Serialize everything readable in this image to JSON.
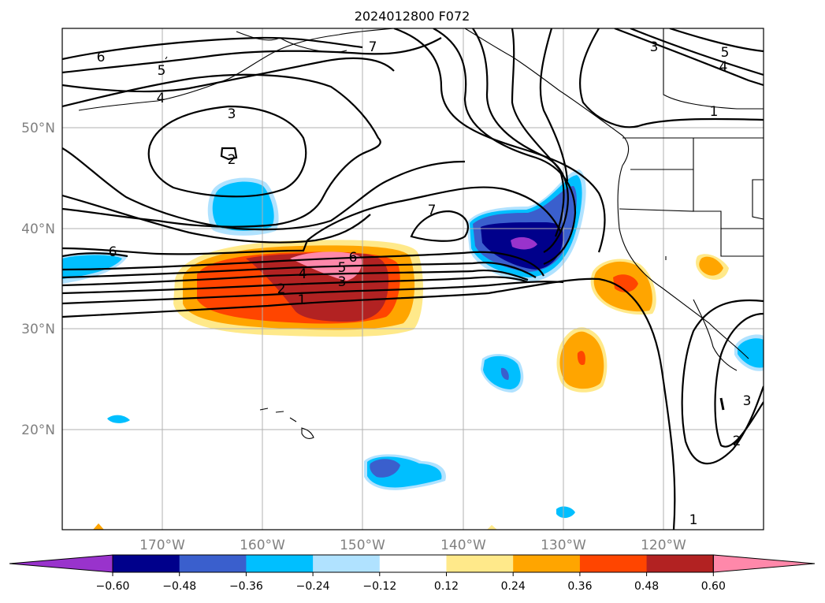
{
  "title": "2024012800 F072",
  "lat_labels": [
    "50°N",
    "40°N",
    "30°N",
    "20°N"
  ],
  "lon_labels": [
    "170°W",
    "160°W",
    "150°W",
    "140°W",
    "130°W",
    "120°W"
  ],
  "colorbar": {
    "ticks": [
      "−0.60",
      "−0.48",
      "−0.36",
      "−0.24",
      "−0.12",
      "0.12",
      "0.24",
      "0.36",
      "0.48",
      "0.60"
    ],
    "colors": [
      "#9933cc",
      "#00008b",
      "#3a5fcd",
      "#00bfff",
      "#b0e2ff",
      "#ffffff",
      "#ffe98a",
      "#ffa500",
      "#ff4500",
      "#b22222",
      "#ff88aa"
    ]
  },
  "contour_labels": {
    "c7_top": "7",
    "c6_topleft": "6",
    "c5_topleft": "5",
    "c4_topleft": "4",
    "c3_low": "3",
    "c2_low": "2",
    "c3_ne": "3",
    "c5_ne": "5",
    "c4_ne": "4",
    "c1_ne": "1",
    "c7_mid": "7",
    "c6_left": "6",
    "c6_jet": "6",
    "c5_jet": "5",
    "c4_jet": "4",
    "c3_jet": "3",
    "c2_jet": "2",
    "c1_jet": "1",
    "c3_se": "3",
    "c2_se": "2",
    "c1_se": "1"
  }
}
